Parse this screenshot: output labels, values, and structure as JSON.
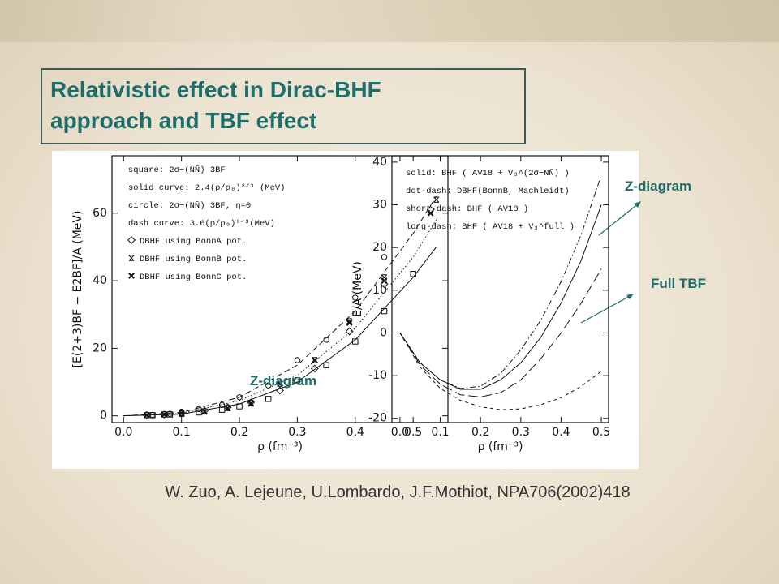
{
  "title_lines": [
    "Relativistic effect in Dirac-BHF",
    "approach and TBF effect"
  ],
  "citation": "W. Zuo, A. Lejeune, U.Lombardo, J.F.Mothiot, NPA706(2002)418",
  "annotations": {
    "left_z": "Z-diagram",
    "right_z": "Z-diagram",
    "full_tbf": "Full TBF"
  },
  "chart_data": [
    {
      "type": "line",
      "y_label": "[E(2+3)BF − E2BF]/A (MeV)",
      "x_label": "ρ (fm⁻³)",
      "xlim": [
        -0.02,
        0.56
      ],
      "ylim": [
        -2,
        77
      ],
      "xticks": [
        {
          "value": 0,
          "label": "0.0"
        },
        0.1,
        0.2,
        0.3,
        0.4,
        0.5
      ],
      "yticks": [
        0,
        20,
        40,
        60
      ],
      "series": [
        {
          "name": "square: 2σ−(NN̄) 3BF",
          "marker": "square",
          "x": [
            0.05,
            0.08,
            0.1,
            0.13,
            0.17,
            0.2,
            0.25,
            0.3,
            0.35,
            0.4,
            0.45,
            0.5
          ],
          "values": [
            0.2,
            0.4,
            0.6,
            1,
            1.8,
            2.8,
            5,
            10.5,
            15,
            22,
            31,
            42
          ]
        },
        {
          "name": "solid curve: 2.4(ρ/ρ₀)⁸ᐟ³ (MeV)",
          "line": "solid",
          "x": [
            0,
            0.1,
            0.2,
            0.3,
            0.4,
            0.5,
            0.54
          ],
          "values": [
            0,
            0.5,
            3.5,
            10,
            22.5,
            41,
            50
          ]
        },
        {
          "name": "circle: 2σ−(NN̄) 3BF, η=0",
          "marker": "circle",
          "x": [
            0.05,
            0.08,
            0.1,
            0.13,
            0.17,
            0.2,
            0.25,
            0.3,
            0.35,
            0.4,
            0.45
          ],
          "values": [
            0.3,
            0.6,
            1.2,
            2,
            3.2,
            5.5,
            9,
            16.5,
            22.5,
            35,
            47
          ]
        },
        {
          "name": "dash curve: 3.6(ρ/ρ₀)⁸ᐟ³(MeV)",
          "line": "dash",
          "x": [
            0,
            0.1,
            0.2,
            0.3,
            0.4,
            0.5,
            0.54
          ],
          "values": [
            0,
            1,
            5.5,
            15,
            31,
            54,
            65
          ]
        },
        {
          "name": "DBHF using BonnA pot.",
          "marker": "diamond",
          "x": [
            0.04,
            0.07,
            0.1,
            0.14,
            0.18,
            0.22,
            0.27,
            0.33,
            0.39,
            0.45,
            0.53
          ],
          "values": [
            0.2,
            0.4,
            0.8,
            1.5,
            2.5,
            4,
            7.5,
            14,
            25,
            39,
            61
          ]
        },
        {
          "name": "DBHF using BonnB pot.",
          "marker": "star",
          "x": [
            0.04,
            0.07,
            0.1,
            0.14,
            0.18,
            0.22,
            0.27,
            0.33,
            0.39,
            0.45,
            0.54
          ],
          "values": [
            0.2,
            0.4,
            0.8,
            1.3,
            2.3,
            3.8,
            9.5,
            16.5,
            28,
            41,
            64
          ]
        },
        {
          "name": "DBHF using BonnC pot.",
          "marker": "cross",
          "x": [
            0.04,
            0.07,
            0.1,
            0.14,
            0.18,
            0.22,
            0.27,
            0.33,
            0.39,
            0.45,
            0.53
          ],
          "values": [
            0.2,
            0.4,
            0.7,
            1.2,
            2.2,
            3.6,
            9.5,
            16.5,
            27.5,
            40,
            60
          ]
        },
        {
          "line": "dot",
          "x": [
            0,
            0.1,
            0.2,
            0.3,
            0.4,
            0.5,
            0.54
          ],
          "values": [
            0,
            0.7,
            4.5,
            12,
            26,
            47,
            58
          ]
        }
      ]
    },
    {
      "type": "line",
      "y_label": "E/A (MeV)",
      "x_label": "ρ (fm⁻³)",
      "xlim": [
        -0.02,
        0.518
      ],
      "ylim": [
        -21,
        41.5
      ],
      "xticks": [
        {
          "value": 0,
          "label": "0.0"
        },
        0.1,
        0.2,
        0.3,
        0.4,
        0.5
      ],
      "yticks": [
        -20,
        -10,
        0,
        10,
        20,
        30,
        40
      ],
      "series": [
        {
          "name": "solid: BHF ( AV18 + V₃^(2σ−NN̄) )",
          "line": "solid",
          "x": [
            0,
            0.05,
            0.1,
            0.15,
            0.2,
            0.25,
            0.3,
            0.35,
            0.4,
            0.45,
            0.5
          ],
          "values": [
            0,
            -7,
            -11,
            -13.2,
            -13.2,
            -11,
            -7,
            -1,
            7,
            17,
            30
          ]
        },
        {
          "name": "dot-dash: DBHF(BonnB, Machleidt)",
          "line": "dashdot",
          "x": [
            0,
            0.05,
            0.1,
            0.15,
            0.2,
            0.25,
            0.3,
            0.35,
            0.4,
            0.45,
            0.5
          ],
          "values": [
            0,
            -7,
            -11,
            -13,
            -12.5,
            -9.5,
            -4,
            3,
            12,
            23,
            37
          ]
        },
        {
          "name": "short-dash: BHF ( AV18 )",
          "line": "shortdash",
          "x": [
            0,
            0.05,
            0.1,
            0.15,
            0.2,
            0.25,
            0.3,
            0.35,
            0.4,
            0.45,
            0.5
          ],
          "values": [
            0,
            -8,
            -13,
            -15.8,
            -17.3,
            -18,
            -17.8,
            -16.8,
            -15.2,
            -12.5,
            -9
          ]
        },
        {
          "name": "long-dash: BHF ( AV18 + V₃^full )",
          "line": "longdash",
          "x": [
            0,
            0.05,
            0.1,
            0.15,
            0.2,
            0.25,
            0.3,
            0.35,
            0.4,
            0.45,
            0.5
          ],
          "values": [
            0,
            -7.5,
            -12,
            -14.5,
            -15,
            -14,
            -11,
            -6,
            0,
            7,
            15
          ]
        }
      ]
    }
  ]
}
